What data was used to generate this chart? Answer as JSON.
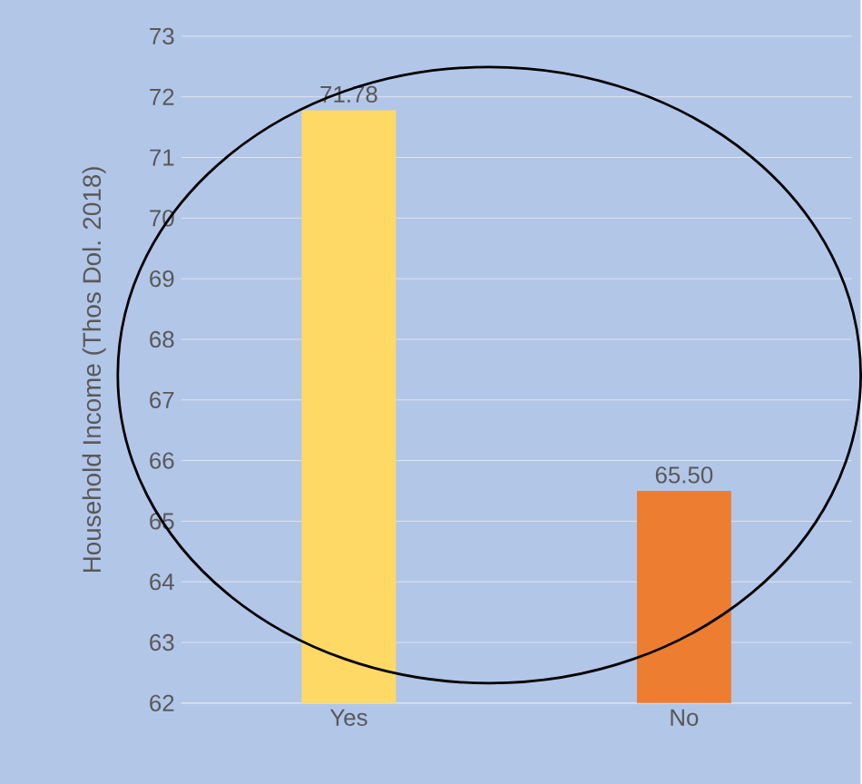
{
  "chart_data": {
    "type": "bar",
    "ylabel": "Household Income (Thos Dol. 2018)",
    "categories": [
      "Yes",
      "No"
    ],
    "values": [
      71.78,
      65.5
    ],
    "colors": [
      "#ffd966",
      "#ed7d31"
    ],
    "value_labels": [
      "71.78",
      "65.50"
    ],
    "ylim": [
      62,
      73
    ],
    "yticks": [
      62,
      63,
      64,
      65,
      66,
      67,
      68,
      69,
      70,
      71,
      72,
      73
    ],
    "grid": "y"
  }
}
